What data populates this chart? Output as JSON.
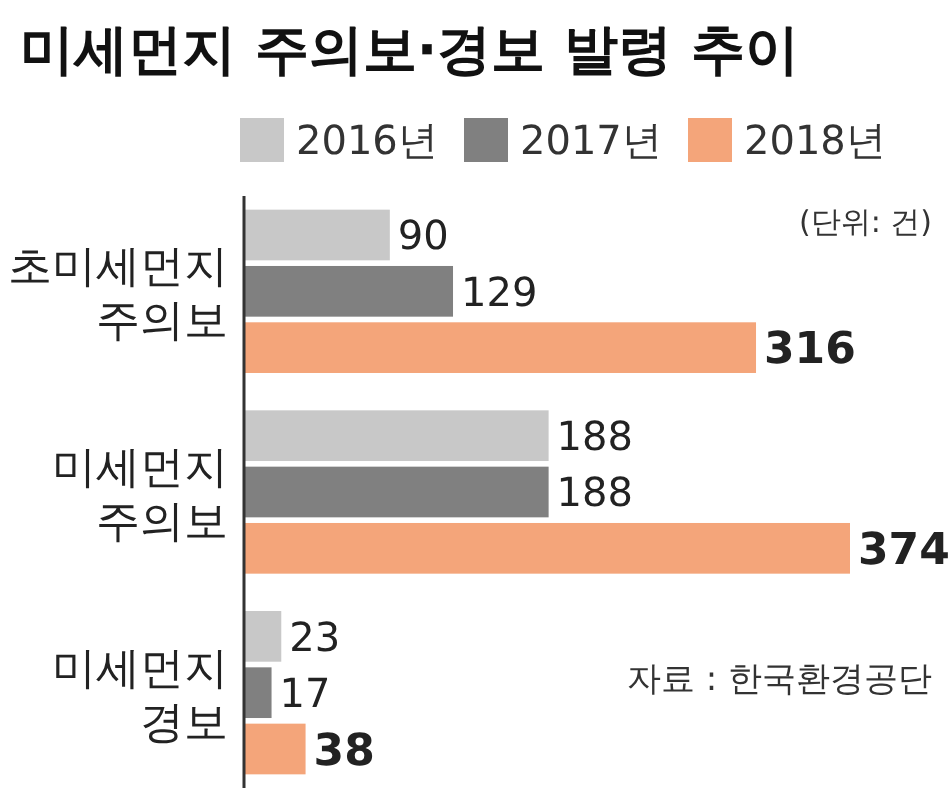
{
  "chart_data": {
    "type": "bar",
    "orientation": "horizontal",
    "title": "미세먼지 주의보·경보 발령 추이",
    "categories": [
      "초미세먼지 주의보",
      "미세먼지 주의보",
      "미세먼지 경보"
    ],
    "series": [
      {
        "name": "2016년",
        "color": "#c8c8c8",
        "values": [
          90,
          188,
          23
        ]
      },
      {
        "name": "2017년",
        "color": "#808080",
        "values": [
          129,
          188,
          17
        ]
      },
      {
        "name": "2018년",
        "color": "#f4a57a",
        "values": [
          316,
          374,
          38
        ]
      }
    ],
    "data_labels": true,
    "legend": "top",
    "grid": false,
    "annotations": [
      "(단위: 건)",
      "자료 : 한국환경공단"
    ]
  }
}
